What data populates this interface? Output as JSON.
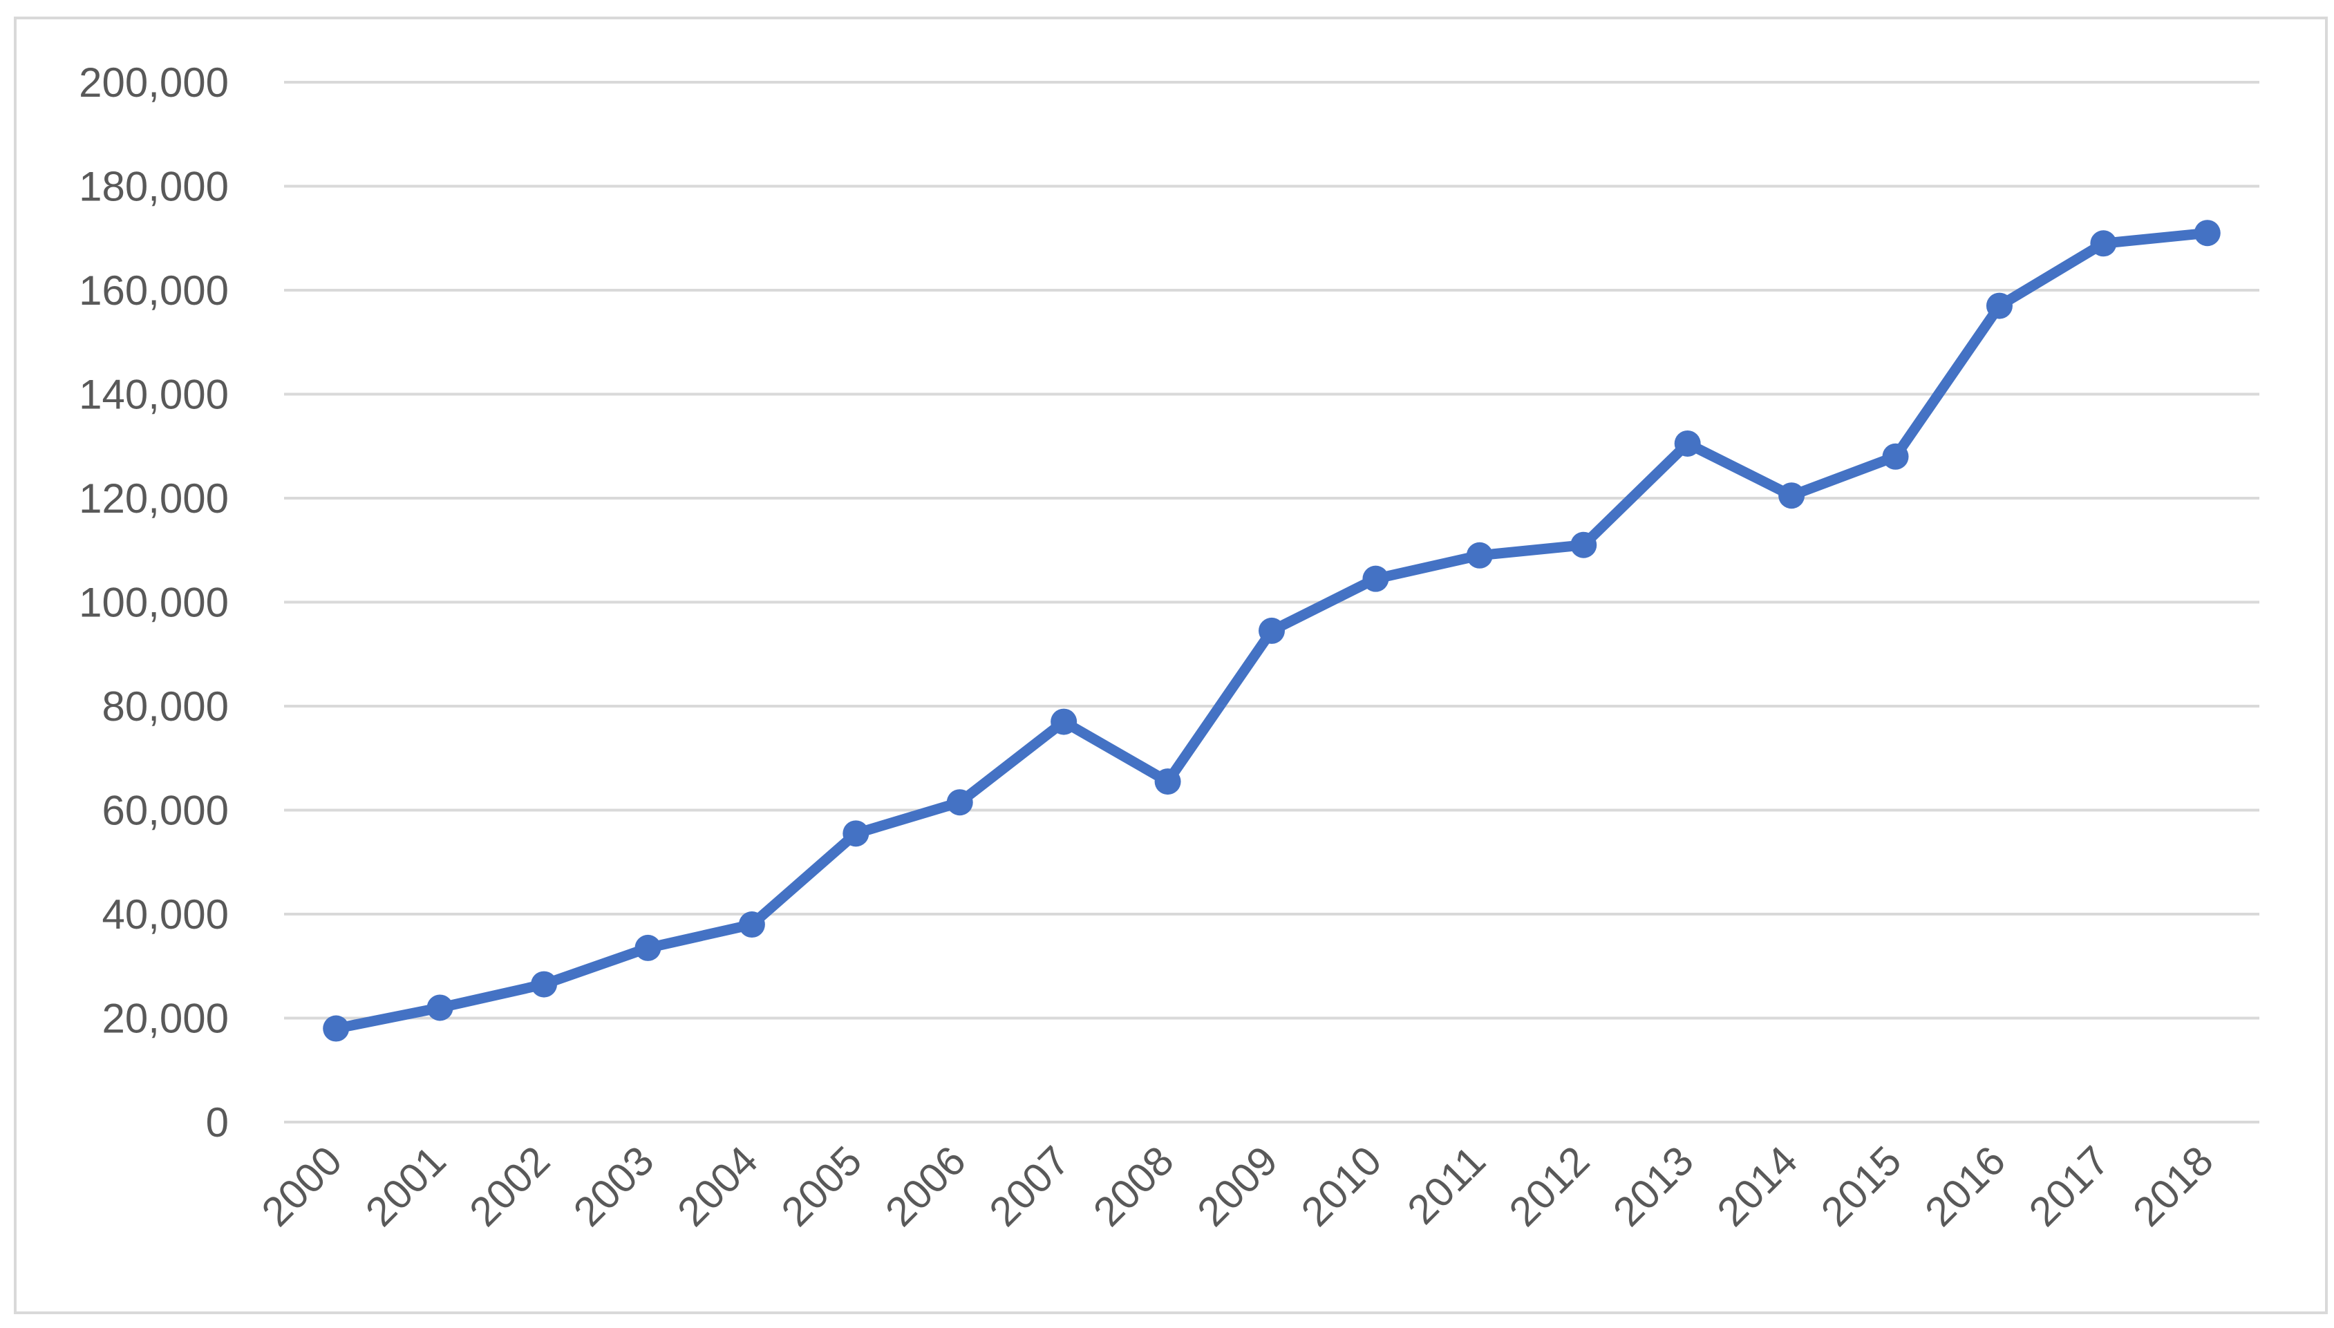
{
  "chart_data": {
    "type": "line",
    "categories": [
      "2000",
      "2001",
      "2002",
      "2003",
      "2004",
      "2005",
      "2006",
      "2007",
      "2008",
      "2009",
      "2010",
      "2011",
      "2012",
      "2013",
      "2014",
      "2015",
      "2016",
      "2017",
      "2018"
    ],
    "series": [
      {
        "color": "#4472c4",
        "values": [
          18000,
          22000,
          26500,
          33500,
          38000,
          55500,
          61500,
          77000,
          65500,
          94500,
          104500,
          109000,
          111000,
          130500,
          120500,
          128000,
          157000,
          169000,
          171000
        ]
      }
    ],
    "ylim": [
      0,
      200000
    ],
    "yticks": [
      0,
      {
        "value": 20000,
        "label": "20,000"
      },
      {
        "value": 40000,
        "label": "40,000"
      },
      {
        "value": 60000,
        "label": "60,000"
      },
      {
        "value": 80000,
        "label": "80,000"
      },
      {
        "value": 100000,
        "label": "100,000"
      },
      {
        "value": 120000,
        "label": "120,000"
      },
      {
        "value": 140000,
        "label": "140,000"
      },
      {
        "value": 160000,
        "label": "160,000"
      },
      {
        "value": 180000,
        "label": "180,000"
      },
      {
        "value": 200000,
        "label": "200,000"
      }
    ],
    "grid": true
  }
}
